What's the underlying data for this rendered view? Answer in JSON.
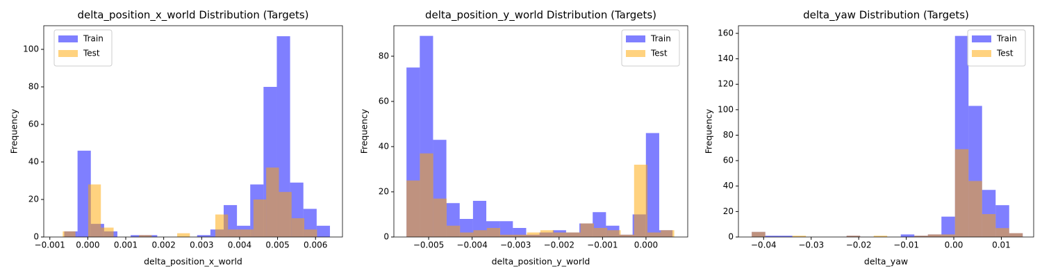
{
  "chart_data": [
    {
      "type": "histogram",
      "title": "delta_position_x_world Distribution (Targets)",
      "xlabel": "delta_position_x_world",
      "ylabel": "Frequency",
      "xlim": [
        -0.00116,
        0.00671
      ],
      "ylim": [
        0,
        112.6
      ],
      "xticks": [
        {
          "value": -0.001,
          "label": "−0.001"
        },
        {
          "value": 0,
          "label": "0.000"
        },
        0.001,
        0.002,
        0.003,
        0.004,
        0.005,
        0.006
      ],
      "yticks": [
        0,
        20,
        40,
        60,
        80,
        100
      ],
      "legend": "upper left",
      "alpha": 0.5,
      "series": [
        {
          "name": "Train",
          "color": "#0000ff",
          "bins": [
            -0.00062,
            -0.00027,
            8e-05,
            0.00043,
            0.00078,
            0.00113,
            0.00148,
            0.00183,
            0.00218,
            0.00253,
            0.00288,
            0.00323,
            0.00358,
            0.00393,
            0.00428,
            0.00463,
            0.00498,
            0.00533,
            0.00568,
            0.00603,
            0.00638
          ],
          "values": [
            3,
            46,
            7,
            3,
            0,
            1,
            1,
            0,
            0,
            0,
            1,
            4,
            17,
            6,
            28,
            80,
            107,
            29,
            15,
            6
          ]
        },
        {
          "name": "Test",
          "color": "#ffa500",
          "bins": [
            -0.00066,
            -0.000325,
            1e-05,
            0.000345,
            0.00068,
            0.001015,
            0.00135,
            0.001685,
            0.00202,
            0.002355,
            0.00269,
            0.003025,
            0.00336,
            0.003695,
            0.00403,
            0.004365,
            0.0047,
            0.005035,
            0.00537,
            0.005705,
            0.00604
          ],
          "values": [
            3,
            0,
            28,
            5,
            0,
            0,
            1,
            0,
            0,
            2,
            0,
            0,
            12,
            4,
            4,
            20,
            37,
            24,
            10,
            4
          ]
        }
      ]
    },
    {
      "type": "histogram",
      "title": "delta_position_y_world Distribution (Targets)",
      "xlabel": "delta_position_y_world",
      "ylabel": "Frequency",
      "xlim": [
        -0.0058,
        0.00096
      ],
      "ylim": [
        0,
        93.5
      ],
      "xticks": [
        {
          "value": -0.005,
          "label": "−0.005"
        },
        {
          "value": -0.004,
          "label": "−0.004"
        },
        {
          "value": -0.003,
          "label": "−0.003"
        },
        {
          "value": -0.002,
          "label": "−0.002"
        },
        {
          "value": -0.001,
          "label": "−0.001"
        },
        {
          "value": 0,
          "label": "0.000"
        }
      ],
      "yticks": [
        0,
        20,
        40,
        60,
        80
      ],
      "legend": "upper right",
      "alpha": 0.5,
      "series": [
        {
          "name": "Train",
          "color": "#0000ff",
          "bins": [
            -0.00551,
            -0.005204,
            -0.004898,
            -0.004592,
            -0.004286,
            -0.00398,
            -0.003674,
            -0.003368,
            -0.003062,
            -0.002756,
            -0.00245,
            -0.002144,
            -0.001838,
            -0.001532,
            -0.001226,
            -0.00092,
            -0.000614,
            -0.000308,
            -2e-06,
            0.000304,
            0.00061
          ],
          "values": [
            75,
            89,
            43,
            15,
            8,
            16,
            7,
            7,
            4,
            1,
            2,
            3,
            2,
            6,
            11,
            5,
            1,
            10,
            46,
            3
          ]
        },
        {
          "name": "Test",
          "color": "#ffa500",
          "bins": [
            -0.00551,
            -0.005202,
            -0.004894,
            -0.004586,
            -0.004278,
            -0.00397,
            -0.003662,
            -0.003354,
            -0.003046,
            -0.002738,
            -0.00243,
            -0.002122,
            -0.001814,
            -0.001506,
            -0.001198,
            -0.00089,
            -0.000582,
            -0.000274,
            3.4e-05,
            0.000342,
            0.00065
          ],
          "values": [
            25,
            37,
            17,
            5,
            2,
            3,
            4,
            1,
            1,
            2,
            3,
            2,
            2,
            6,
            4,
            3,
            1,
            32,
            2,
            3
          ]
        }
      ]
    },
    {
      "type": "histogram",
      "title": "delta_yaw Distribution (Targets)",
      "xlabel": "delta_yaw",
      "ylabel": "Frequency",
      "xlim": [
        -0.0453,
        0.0168
      ],
      "ylim": [
        0,
        166
      ],
      "xticks": [
        {
          "value": -0.04,
          "label": "−0.04"
        },
        {
          "value": -0.03,
          "label": "−0.03"
        },
        {
          "value": -0.02,
          "label": "−0.02"
        },
        {
          "value": -0.01,
          "label": "−0.01"
        },
        {
          "value": 0,
          "label": "0.00"
        },
        0.01
      ],
      "yticks": [
        0,
        20,
        40,
        60,
        80,
        100,
        120,
        140,
        160
      ],
      "legend": "upper right",
      "alpha": 0.5,
      "series": [
        {
          "name": "Train",
          "color": "#0000ff",
          "bins": [
            -0.0425,
            -0.03965,
            -0.0368,
            -0.03395,
            -0.0311,
            -0.02825,
            -0.0254,
            -0.02255,
            -0.0197,
            -0.01685,
            -0.014,
            -0.01115,
            -0.0083,
            -0.00545,
            -0.0026,
            0.00025,
            0.0031,
            0.00595,
            0.0088,
            0.01165,
            0.0145
          ],
          "values": [
            4,
            1,
            1,
            0,
            0,
            0,
            0,
            1,
            0,
            0,
            0,
            2,
            1,
            2,
            16,
            158,
            103,
            37,
            25,
            3
          ]
        },
        {
          "name": "Test",
          "color": "#ffa500",
          "bins": [
            -0.0425,
            -0.03965,
            -0.0368,
            -0.03395,
            -0.0311,
            -0.02825,
            -0.0254,
            -0.02255,
            -0.0197,
            -0.01685,
            -0.014,
            -0.01115,
            -0.0083,
            -0.00545,
            -0.0026,
            0.00025,
            0.0031,
            0.00595,
            0.0088,
            0.01165,
            0.0145
          ],
          "values": [
            4,
            0,
            0,
            1,
            0,
            0,
            0,
            1,
            0,
            1,
            0,
            0,
            1,
            2,
            2,
            69,
            44,
            18,
            7,
            3
          ]
        }
      ]
    }
  ]
}
